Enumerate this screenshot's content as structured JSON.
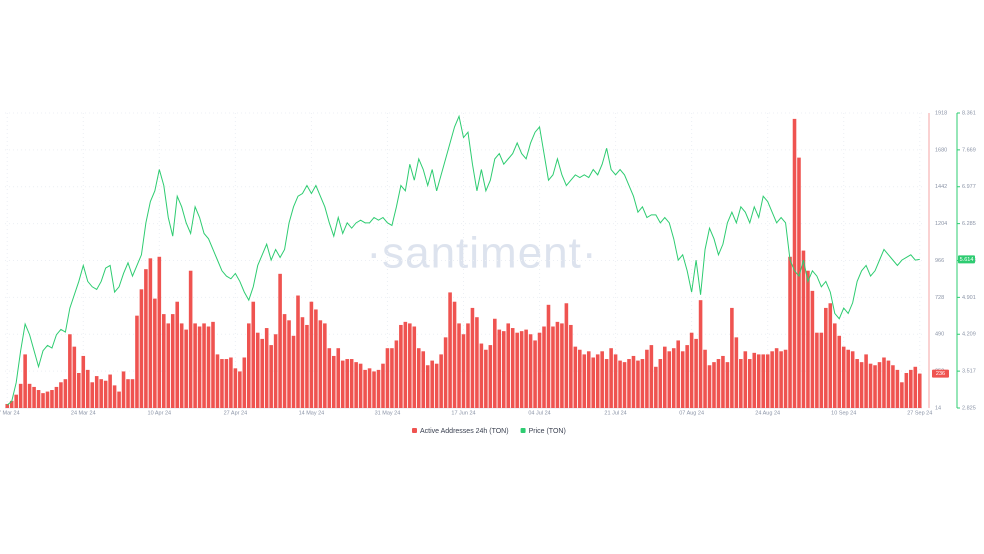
{
  "chart_data": {
    "type": "bar",
    "watermark": "·santiment·",
    "categories": [
      "07 Mar 24",
      null,
      null,
      null,
      null,
      null,
      null,
      null,
      null,
      null,
      null,
      null,
      null,
      null,
      null,
      null,
      null,
      "24 Mar 24",
      null,
      null,
      null,
      null,
      null,
      null,
      null,
      null,
      null,
      null,
      null,
      null,
      null,
      null,
      null,
      null,
      "10 Apr 24",
      null,
      null,
      null,
      null,
      null,
      null,
      null,
      null,
      null,
      null,
      null,
      null,
      null,
      null,
      null,
      null,
      "27 Apr 24",
      null,
      null,
      null,
      null,
      null,
      null,
      null,
      null,
      null,
      null,
      null,
      null,
      null,
      null,
      null,
      null,
      "14 May 24",
      null,
      null,
      null,
      null,
      null,
      null,
      null,
      null,
      null,
      null,
      null,
      null,
      null,
      null,
      null,
      null,
      "31 May 24",
      null,
      null,
      null,
      null,
      null,
      null,
      null,
      null,
      null,
      null,
      null,
      null,
      null,
      null,
      null,
      null,
      "17 Jun 24",
      null,
      null,
      null,
      null,
      null,
      null,
      null,
      null,
      null,
      null,
      null,
      null,
      null,
      null,
      null,
      null,
      "04 Jul 24",
      null,
      null,
      null,
      null,
      null,
      null,
      null,
      null,
      null,
      null,
      null,
      null,
      null,
      null,
      null,
      null,
      "21 Jul 24",
      null,
      null,
      null,
      null,
      null,
      null,
      null,
      null,
      null,
      null,
      null,
      null,
      null,
      null,
      null,
      null,
      "07 Aug 24",
      null,
      null,
      null,
      null,
      null,
      null,
      null,
      null,
      null,
      null,
      null,
      null,
      null,
      null,
      null,
      null,
      "24 Aug 24",
      null,
      null,
      null,
      null,
      null,
      null,
      null,
      null,
      null,
      null,
      null,
      null,
      null,
      null,
      null,
      null,
      "10 Sep 24",
      null,
      null,
      null,
      null,
      null,
      null,
      null,
      null,
      null,
      null,
      null,
      null,
      null,
      null,
      null,
      null,
      "27 Sep 24"
    ],
    "series": [
      {
        "name": "Active Addresses 24h (TON)",
        "type": "bar",
        "color": "#ef5350",
        "badge": "236",
        "values": [
          40,
          60,
          100,
          170,
          360,
          170,
          150,
          130,
          110,
          120,
          130,
          150,
          180,
          200,
          490,
          410,
          240,
          350,
          260,
          180,
          220,
          200,
          190,
          230,
          160,
          120,
          250,
          200,
          200,
          610,
          780,
          910,
          980,
          720,
          990,
          620,
          560,
          620,
          700,
          560,
          520,
          900,
          560,
          540,
          560,
          540,
          570,
          360,
          330,
          330,
          340,
          270,
          250,
          340,
          560,
          700,
          500,
          460,
          530,
          420,
          490,
          880,
          620,
          580,
          480,
          740,
          600,
          550,
          700,
          650,
          580,
          560,
          400,
          350,
          400,
          320,
          330,
          330,
          310,
          300,
          260,
          270,
          250,
          260,
          300,
          400,
          400,
          450,
          550,
          570,
          560,
          540,
          400,
          380,
          290,
          320,
          300,
          360,
          470,
          760,
          700,
          560,
          490,
          560,
          660,
          600,
          430,
          390,
          420,
          590,
          520,
          510,
          560,
          530,
          500,
          510,
          520,
          490,
          450,
          500,
          540,
          680,
          540,
          570,
          560,
          690,
          550,
          410,
          390,
          360,
          380,
          340,
          360,
          380,
          330,
          400,
          360,
          320,
          310,
          330,
          350,
          320,
          330,
          390,
          420,
          280,
          330,
          410,
          380,
          400,
          450,
          380,
          420,
          500,
          460,
          710,
          390,
          290,
          310,
          330,
          350,
          310,
          660,
          470,
          330,
          380,
          330,
          370,
          360,
          360,
          360,
          380,
          400,
          380,
          390,
          990,
          1880,
          1630,
          1030,
          900,
          770,
          500,
          500,
          660,
          690,
          560,
          480,
          410,
          390,
          380,
          330,
          310,
          360,
          300,
          290,
          310,
          340,
          320,
          290,
          260,
          180,
          240,
          260,
          280,
          236
        ]
      },
      {
        "name": "Price (TON)",
        "type": "line",
        "axis": "y2",
        "color": "#2ecc71",
        "badge": "5.614",
        "values": [
          2.88,
          2.95,
          3.3,
          3.9,
          4.4,
          4.2,
          3.9,
          3.6,
          3.9,
          4.0,
          3.95,
          4.2,
          4.3,
          4.25,
          4.7,
          4.95,
          5.2,
          5.5,
          5.2,
          5.1,
          5.05,
          5.2,
          5.45,
          5.5,
          5.0,
          5.1,
          5.35,
          5.55,
          5.3,
          5.5,
          5.7,
          6.3,
          6.7,
          6.9,
          7.3,
          7.0,
          6.4,
          6.05,
          6.8,
          6.6,
          6.3,
          6.1,
          6.6,
          6.4,
          6.1,
          6.0,
          5.8,
          5.6,
          5.4,
          5.3,
          5.25,
          5.35,
          5.2,
          5.0,
          4.85,
          5.1,
          5.5,
          5.7,
          5.9,
          5.6,
          5.8,
          5.65,
          5.8,
          6.3,
          6.6,
          6.8,
          6.85,
          7.0,
          6.85,
          7.0,
          6.8,
          6.6,
          6.3,
          6.05,
          6.4,
          6.1,
          6.3,
          6.2,
          6.3,
          6.35,
          6.3,
          6.3,
          6.4,
          6.35,
          6.4,
          6.3,
          6.25,
          6.6,
          7.0,
          6.9,
          7.4,
          7.1,
          7.5,
          7.3,
          7.0,
          7.3,
          6.9,
          7.2,
          7.5,
          7.8,
          8.1,
          8.3,
          7.9,
          8.0,
          7.4,
          6.9,
          7.3,
          6.9,
          7.1,
          7.5,
          7.6,
          7.4,
          7.5,
          7.6,
          7.8,
          7.6,
          7.5,
          7.8,
          8.0,
          8.1,
          7.6,
          7.1,
          7.2,
          7.5,
          7.2,
          7.0,
          7.1,
          7.2,
          7.15,
          7.2,
          7.15,
          7.3,
          7.2,
          7.4,
          7.7,
          7.3,
          7.2,
          7.3,
          7.2,
          7.0,
          6.8,
          6.5,
          6.6,
          6.4,
          6.45,
          6.45,
          6.3,
          6.4,
          6.3,
          6.0,
          5.6,
          5.7,
          5.4,
          5.0,
          5.6,
          4.95,
          5.8,
          6.2,
          6.0,
          5.7,
          5.9,
          6.3,
          6.5,
          6.3,
          6.6,
          6.5,
          6.3,
          6.6,
          6.4,
          6.8,
          6.7,
          6.5,
          6.3,
          6.4,
          6.3,
          5.6,
          5.4,
          5.3,
          5.6,
          5.2,
          5.4,
          5.3,
          5.1,
          5.2,
          5.0,
          4.6,
          4.5,
          4.7,
          4.6,
          4.8,
          5.2,
          5.4,
          5.5,
          5.3,
          5.4,
          5.6,
          5.8,
          5.7,
          5.6,
          5.5,
          5.6,
          5.65,
          5.7,
          5.6,
          5.614
        ]
      }
    ],
    "ylim": [
      14,
      1918
    ],
    "yticks": [
      14,
      252,
      490,
      728,
      966,
      1204,
      1442,
      1680,
      1918
    ],
    "y2lim": [
      2.825,
      8.361
    ],
    "y2ticks": [
      2.825,
      3.517,
      4.209,
      4.901,
      5.593,
      6.285,
      6.977,
      7.669,
      8.361
    ],
    "grid": true
  }
}
